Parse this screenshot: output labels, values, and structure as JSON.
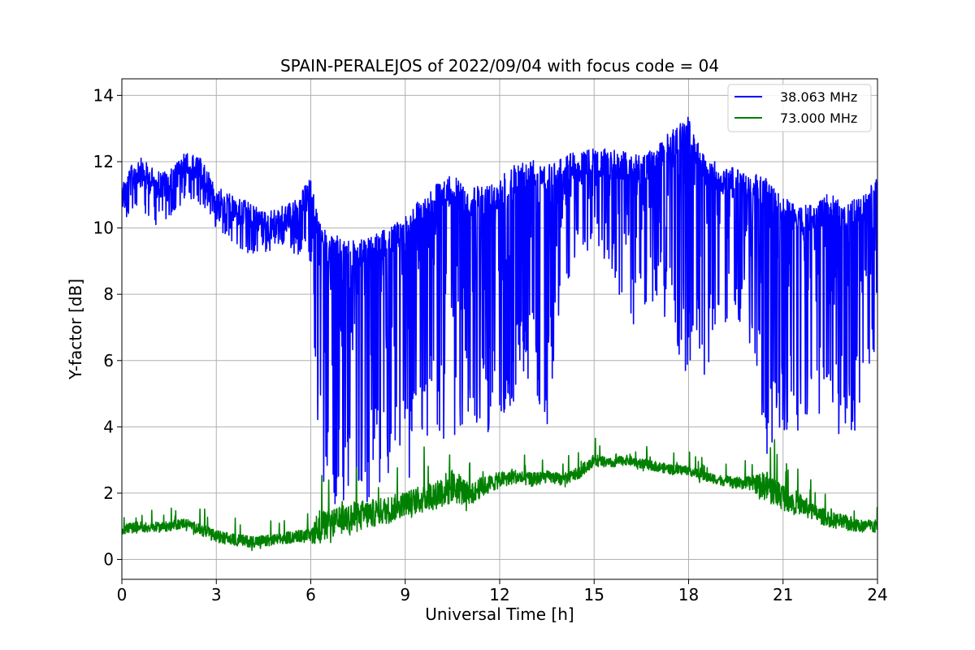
{
  "chart_data": {
    "type": "line",
    "title": "SPAIN-PERALEJOS of 2022/09/04 with focus code = 04",
    "xlabel": "Universal Time [h]",
    "ylabel": "Y-factor [dB]",
    "xlim": [
      0,
      24
    ],
    "ylim": [
      -0.6,
      14.5
    ],
    "xticks": [
      "0",
      "3",
      "6",
      "9",
      "12",
      "15",
      "18",
      "21",
      "24"
    ],
    "yticks": [
      "0",
      "2",
      "4",
      "6",
      "8",
      "10",
      "12",
      "14"
    ],
    "grid": true,
    "legend_position": "top-right",
    "series": [
      {
        "name": "38.063 MHz",
        "color": "#0000ff",
        "x": [
          0,
          0.5,
          1,
          1.5,
          2,
          2.5,
          3,
          3.5,
          4,
          4.5,
          5,
          5.5,
          6,
          6.25,
          6.5,
          7,
          7.5,
          8,
          8.5,
          9,
          9.5,
          10,
          10.5,
          11,
          11.5,
          12,
          12.5,
          13,
          13.5,
          14,
          14.5,
          15,
          15.5,
          16,
          16.5,
          17,
          17.5,
          18,
          18.5,
          19,
          19.5,
          20,
          20.5,
          21,
          21.5,
          22,
          22.5,
          23,
          23.5,
          24
        ],
        "upper": [
          11.4,
          12.2,
          11.8,
          11.7,
          12.3,
          12.1,
          11.3,
          11.0,
          10.8,
          10.5,
          10.6,
          10.9,
          11.5,
          10.2,
          9.9,
          9.7,
          9.6,
          9.8,
          10.0,
          10.4,
          10.9,
          11.4,
          11.6,
          11.2,
          11.3,
          11.5,
          12.0,
          12.1,
          12.0,
          12.2,
          12.3,
          12.4,
          12.4,
          12.3,
          12.2,
          12.5,
          13.0,
          13.4,
          12.2,
          11.9,
          11.8,
          11.7,
          11.5,
          11.0,
          10.6,
          10.8,
          11.1,
          10.7,
          11.0,
          11.5
        ],
        "lower": [
          10.2,
          10.4,
          10.1,
          10.0,
          10.9,
          10.7,
          10.0,
          9.6,
          9.1,
          9.2,
          9.4,
          9.2,
          9.0,
          3.0,
          1.8,
          1.2,
          1.4,
          1.8,
          2.4,
          2.0,
          3.3,
          3.8,
          3.0,
          4.1,
          4.0,
          3.4,
          4.8,
          5.2,
          4.0,
          8.2,
          9.0,
          9.4,
          8.8,
          6.5,
          7.0,
          7.8,
          6.6,
          5.2,
          5.5,
          6.8,
          7.4,
          6.3,
          3.0,
          3.8,
          3.6,
          4.3,
          4.0,
          3.6,
          3.9,
          6.5
        ]
      },
      {
        "name": "73.000 MHz",
        "color": "#008000",
        "x": [
          0,
          0.5,
          1,
          1.5,
          2,
          2.5,
          3,
          3.5,
          4,
          4.5,
          5,
          5.5,
          6,
          6.25,
          6.5,
          7,
          7.5,
          8,
          8.5,
          9,
          9.5,
          10,
          10.5,
          11,
          11.5,
          12,
          12.5,
          13,
          13.5,
          14,
          14.5,
          15,
          15.5,
          16,
          16.5,
          17,
          17.5,
          18,
          18.5,
          19,
          19.5,
          20,
          20.5,
          21,
          21.5,
          22,
          22.5,
          23,
          23.5,
          24
        ],
        "mean": [
          0.9,
          1.0,
          0.95,
          1.0,
          1.1,
          0.9,
          0.7,
          0.6,
          0.55,
          0.55,
          0.6,
          0.7,
          0.7,
          1.0,
          1.0,
          1.2,
          1.3,
          1.4,
          1.5,
          1.7,
          1.8,
          2.0,
          2.2,
          2.0,
          2.2,
          2.4,
          2.5,
          2.4,
          2.5,
          2.4,
          2.6,
          3.0,
          2.9,
          3.0,
          2.9,
          2.8,
          2.7,
          2.7,
          2.5,
          2.4,
          2.3,
          2.3,
          2.2,
          1.9,
          1.7,
          1.4,
          1.2,
          1.1,
          1.0,
          1.0
        ],
        "noise": [
          0.25,
          0.25,
          0.25,
          0.25,
          0.25,
          0.3,
          0.3,
          0.3,
          0.3,
          0.3,
          0.3,
          0.3,
          0.35,
          0.9,
          0.7,
          0.7,
          0.8,
          0.7,
          0.7,
          0.6,
          0.7,
          0.8,
          0.9,
          0.6,
          0.5,
          0.4,
          0.35,
          0.35,
          0.3,
          0.3,
          0.3,
          0.3,
          0.25,
          0.25,
          0.25,
          0.25,
          0.25,
          0.25,
          0.25,
          0.25,
          0.3,
          0.35,
          0.8,
          0.7,
          0.55,
          0.45,
          0.4,
          0.4,
          0.35,
          0.35
        ]
      }
    ]
  }
}
